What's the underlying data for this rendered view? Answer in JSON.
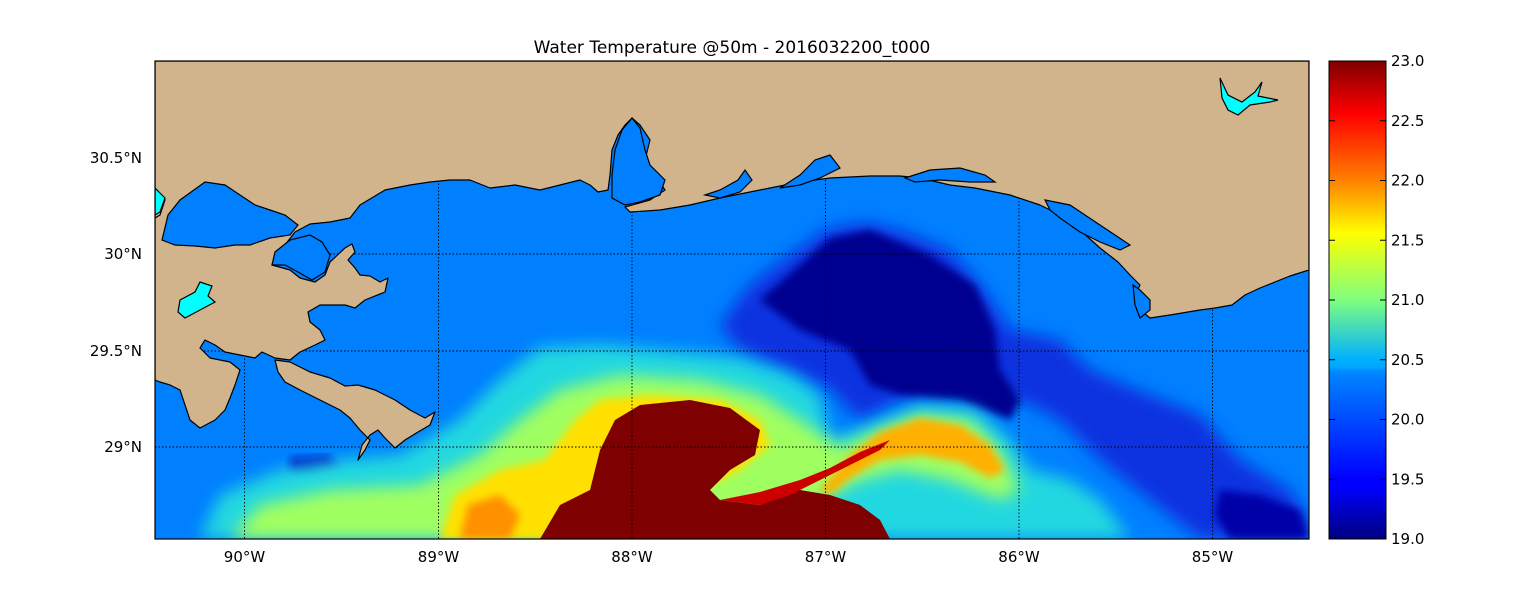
{
  "title": "Water Temperature @50m - 2016032200_t000",
  "map": {
    "lon_range": [
      -90.45,
      -84.5
    ],
    "lat_range": [
      28.55,
      31.0
    ],
    "lon_ticks": [
      -90,
      -89,
      -88,
      -87,
      -86,
      -85
    ],
    "lat_ticks": [
      29.0,
      29.5,
      30.0,
      30.5
    ],
    "lon_tick_labels": [
      "90°W",
      "89°W",
      "88°W",
      "87°W",
      "86°W",
      "85°W"
    ],
    "lat_tick_labels": [
      "29°N",
      "29.5°N",
      "30°N",
      "30.5°N"
    ],
    "grid": true,
    "land_color": "#d2b48c",
    "ocean_color": "#0080ff",
    "lake_color": "#00ffff",
    "coast_color": "#000000"
  },
  "colorbar": {
    "min": 19.0,
    "max": 23.0,
    "ticks": [
      19.0,
      19.5,
      20.0,
      20.5,
      21.0,
      21.5,
      22.0,
      22.5,
      23.0
    ],
    "tick_labels": [
      "19.0",
      "19.5",
      "20.0",
      "20.5",
      "21.0",
      "21.5",
      "22.0",
      "22.5",
      "23.0"
    ],
    "colormap": "jet",
    "placement": "right"
  }
}
